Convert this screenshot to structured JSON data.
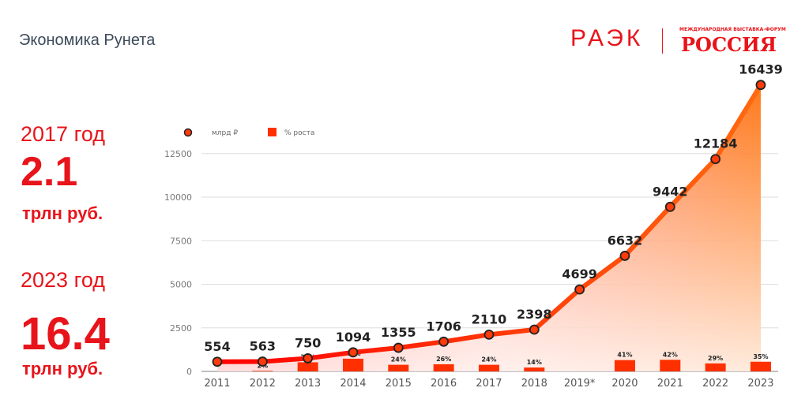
{
  "header": {
    "title": "Экономика Рунета"
  },
  "logos": {
    "raek": "РАЭК",
    "russia_sub": "МЕЖДУНАРОДНАЯ ВЫСТАВКА-ФОРУМ",
    "russia": "РОССИЯ"
  },
  "stats": [
    {
      "year": "2017 год",
      "value": "2.1",
      "unit": "трлн руб."
    },
    {
      "year": "2023 год",
      "value": "16.4",
      "unit": "трлн руб."
    }
  ],
  "colors": {
    "accent": "#e8141b",
    "line": "#ff3b0a",
    "bar": "#ff3000"
  },
  "chart_data": {
    "type": "line+bar",
    "categories": [
      "2011",
      "2012",
      "2013",
      "2014",
      "2015",
      "2016",
      "2017",
      "2018",
      "2019*",
      "2020",
      "2021",
      "2022",
      "2023"
    ],
    "series": [
      {
        "name": "млрд ₽",
        "type": "line",
        "values": [
          554,
          563,
          750,
          1094,
          1355,
          1706,
          2110,
          2398,
          4699,
          6632,
          9442,
          12184,
          16439
        ]
      },
      {
        "name": "% роста",
        "type": "bar",
        "values": [
          null,
          2,
          33,
          46,
          24,
          26,
          24,
          14,
          null,
          41,
          42,
          29,
          35
        ],
        "labels": [
          "",
          "2%",
          "33%",
          "46%",
          "24%",
          "26%",
          "24%",
          "14%",
          "",
          "41%",
          "42%",
          "29%",
          "35%"
        ]
      }
    ],
    "yticks": [
      "0",
      "2500",
      "5000",
      "7500",
      "10000",
      "12500"
    ],
    "ylim": [
      0,
      16500
    ],
    "grid": true,
    "legend": "top-left"
  }
}
